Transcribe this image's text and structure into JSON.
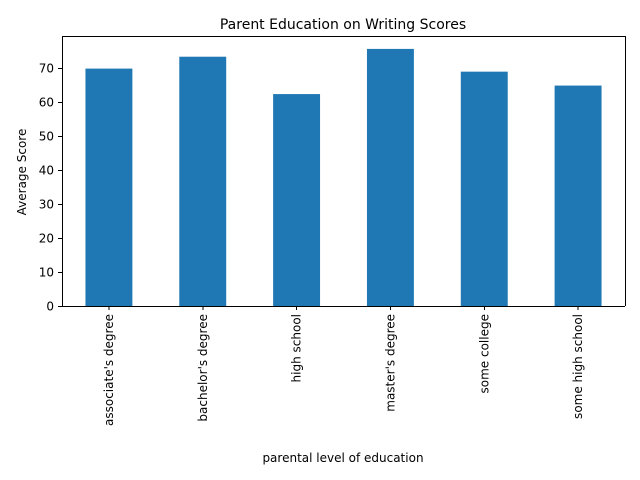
{
  "chart_data": {
    "type": "bar",
    "title": "Parent Education on Writing Scores",
    "xlabel": "parental level of education",
    "ylabel": "Average Score",
    "categories": [
      "associate's degree",
      "bachelor's degree",
      "high school",
      "master's degree",
      "some college",
      "some high school"
    ],
    "values": [
      69.9,
      73.4,
      62.4,
      75.7,
      69.0,
      64.9
    ],
    "ylim": [
      0,
      79.5
    ],
    "yticks": [
      0,
      10,
      20,
      30,
      40,
      50,
      60,
      70
    ],
    "grid": false,
    "legend": "none",
    "bar_color": "#1f77b4"
  }
}
